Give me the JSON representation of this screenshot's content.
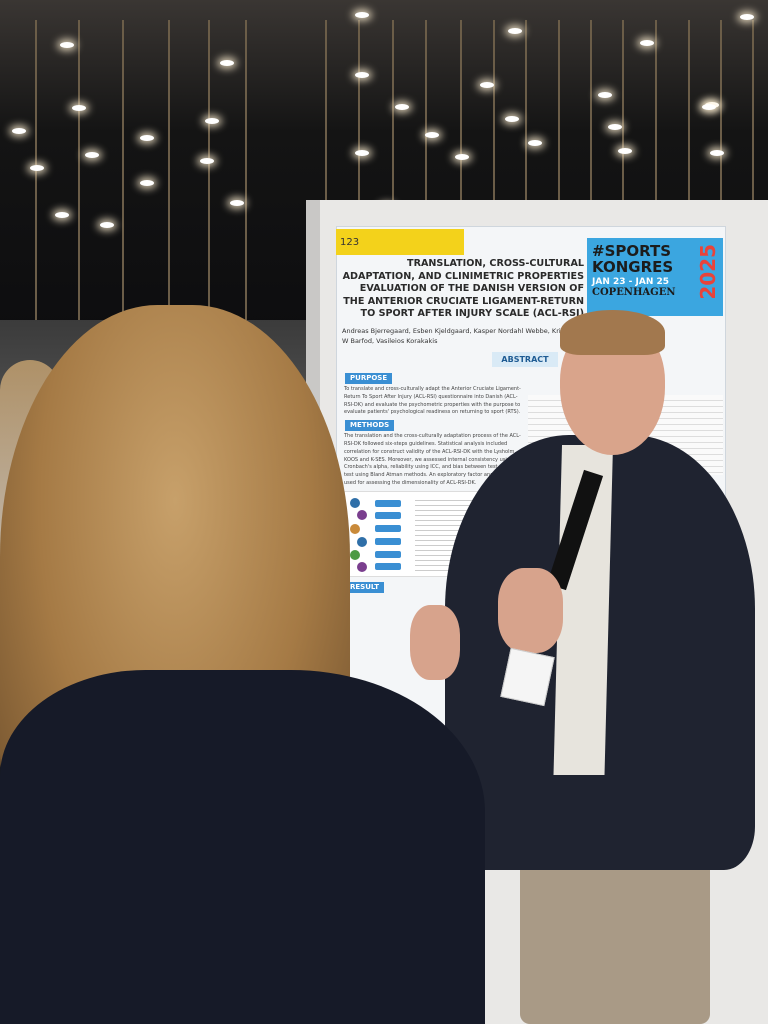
{
  "poster": {
    "number": "123",
    "title": "TRANSLATION, CROSS-CULTURAL ADAPTATION, AND CLINIMETRIC PROPERTIES EVALUATION OF THE DANISH VERSION OF THE ANTERIOR CRUCIATE LIGAMENT-RETURN TO SPORT AFTER INJURY SCALE (ACL-RSI)",
    "authors": "Andreas Bjerregaard, Esben Kjeldgaard, Kasper Nordahl Webbe, Kristoffer W Barfod, Vasileios Korakakis",
    "abstract_label": "ABSTRACT",
    "purpose_label": "PURPOSE",
    "purpose_text": "To translate and cross-culturally adapt the Anterior Cruciate Ligament-Return To Sport After Injury (ACL-RSI) questionnaire into Danish (ACL-RSI-DK) and evaluate the psychometric properties with the purpose to evaluate patients' psychological readiness on returning to sport (RTS).",
    "methods_label": "METHODS",
    "methods_text": "The translation and the cross-culturally adaptation process of the ACL-RSI-DK followed six-steps guidelines. Statistical analysis included correlation for construct validity of the ACL-RSI-DK with the Lysholm, KOOS and K-SES. Moreover, we assessed internal consistency using Cronbach's alpha, reliability using ICC, and bias between test and re-test using Bland Atman methods. An exploratory factor analysis was used for assessing the dimensionality of ACL-RSI-DK.",
    "result_label": "RESULT"
  },
  "congress": {
    "hashtag": "#SPORTS",
    "name": "KONGRES",
    "dates": "JAN 23 - JAN 25",
    "city": "COPENHAGEN",
    "year": "2025"
  }
}
